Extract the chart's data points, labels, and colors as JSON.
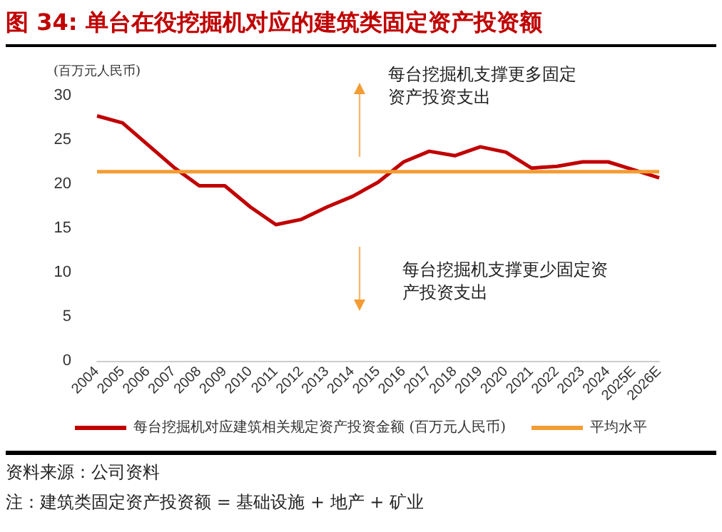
{
  "chart_data": {
    "type": "line",
    "title": "图 34: 单台在役挖掘机对应的建筑类固定资产投资额",
    "ylabel": "(百万元人民币)",
    "categories": [
      "2004",
      "2005",
      "2006",
      "2007",
      "2008",
      "2009",
      "2010",
      "2011",
      "2012",
      "2013",
      "2014",
      "2015",
      "2016",
      "2017",
      "2018",
      "2019",
      "2020",
      "2021",
      "2022",
      "2023",
      "2024",
      "2025E",
      "2026E"
    ],
    "series": [
      {
        "name": "每台挖掘机对应建筑相关规定资产投资金额 (百万元人民币)",
        "color": "#c00000",
        "values": [
          27.7,
          26.9,
          24.4,
          21.9,
          19.8,
          19.8,
          17.4,
          15.4,
          16.0,
          17.4,
          18.6,
          20.2,
          22.5,
          23.7,
          23.2,
          24.2,
          23.6,
          21.8,
          22.0,
          22.5,
          22.5,
          21.6,
          20.7
        ]
      },
      {
        "name": "平均水平",
        "color": "#f39c34",
        "values": [
          21.4,
          21.4,
          21.4,
          21.4,
          21.4,
          21.4,
          21.4,
          21.4,
          21.4,
          21.4,
          21.4,
          21.4,
          21.4,
          21.4,
          21.4,
          21.4,
          21.4,
          21.4,
          21.4,
          21.4,
          21.4,
          21.4,
          21.4
        ]
      }
    ],
    "ylim": [
      0,
      30
    ],
    "yticks": [
      0,
      5,
      10,
      15,
      20,
      25,
      30
    ],
    "grid": false,
    "legend": "bottom",
    "marker": "none",
    "line_style": "solid",
    "annotations": [
      "每台挖掘机支撑更多固定资产投资支出",
      "每台挖掘机支撑更少固定资产投资支出",
      "资料来源：公司资料",
      "注：建筑类固定资产投资额 = 基础设施 + 地产 + 矿业"
    ]
  }
}
